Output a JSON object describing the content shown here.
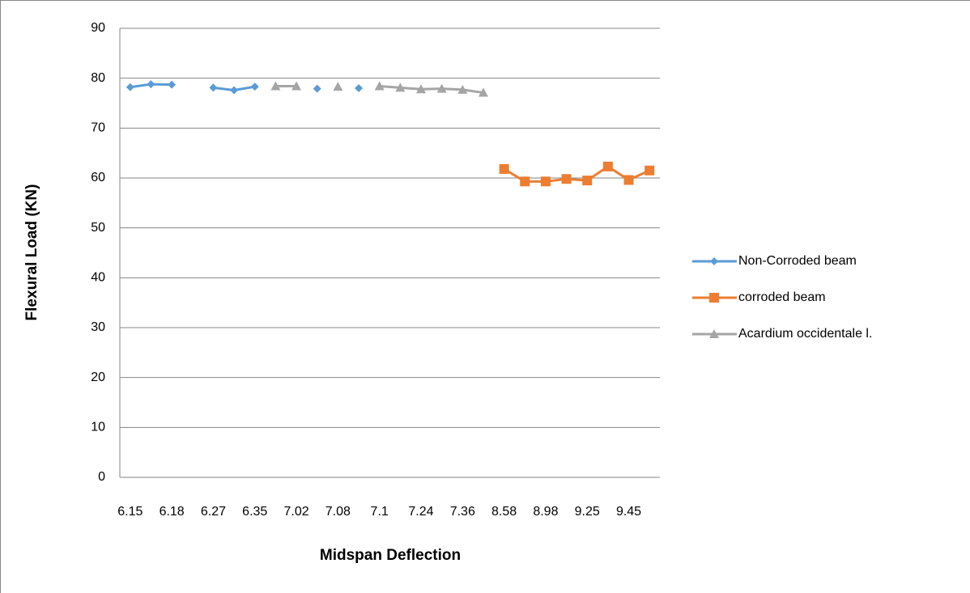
{
  "chart_data": {
    "type": "line",
    "x_label": "Midspan Deflection",
    "y_label": "Flexural Load (KN)",
    "categories": [
      "6.15",
      null,
      "6.18",
      null,
      "6.27",
      null,
      "6.35",
      null,
      "7.02",
      null,
      "7.08",
      null,
      "7.1",
      null,
      "7.24",
      null,
      "7.36",
      null,
      "8.58",
      null,
      "8.98",
      null,
      "9.25",
      null,
      "9.45",
      null
    ],
    "series": [
      {
        "name": "Non-Corroded  beam",
        "color": "#5b9bd5",
        "marker": "diamond",
        "values": [
          78.2,
          78.8,
          78.7,
          null,
          78.1,
          77.6,
          78.3,
          null,
          null,
          77.9,
          null,
          78.0,
          null,
          null,
          null,
          null,
          null,
          null,
          null,
          null,
          null,
          null,
          null,
          null,
          null,
          null
        ]
      },
      {
        "name": "corroded beam",
        "color": "#ed7d31",
        "marker": "square",
        "values": [
          null,
          null,
          null,
          null,
          null,
          null,
          null,
          null,
          null,
          null,
          null,
          null,
          null,
          null,
          null,
          null,
          null,
          null,
          61.8,
          59.3,
          59.3,
          59.8,
          59.5,
          62.3,
          59.6,
          61.5
        ]
      },
      {
        "name": "Acardium occidentale  l.",
        "color": "#a5a5a5",
        "marker": "triangle",
        "values": [
          null,
          null,
          null,
          null,
          null,
          null,
          null,
          78.4,
          78.4,
          null,
          78.3,
          null,
          78.4,
          78.1,
          77.8,
          77.9,
          77.7,
          77.1,
          null,
          null,
          null,
          null,
          null,
          null,
          null,
          null
        ]
      }
    ],
    "ylim": [
      0,
      90
    ],
    "yticks": [
      0,
      10,
      20,
      30,
      40,
      50,
      60,
      70,
      80,
      90
    ],
    "grid": true,
    "legend": "right"
  }
}
